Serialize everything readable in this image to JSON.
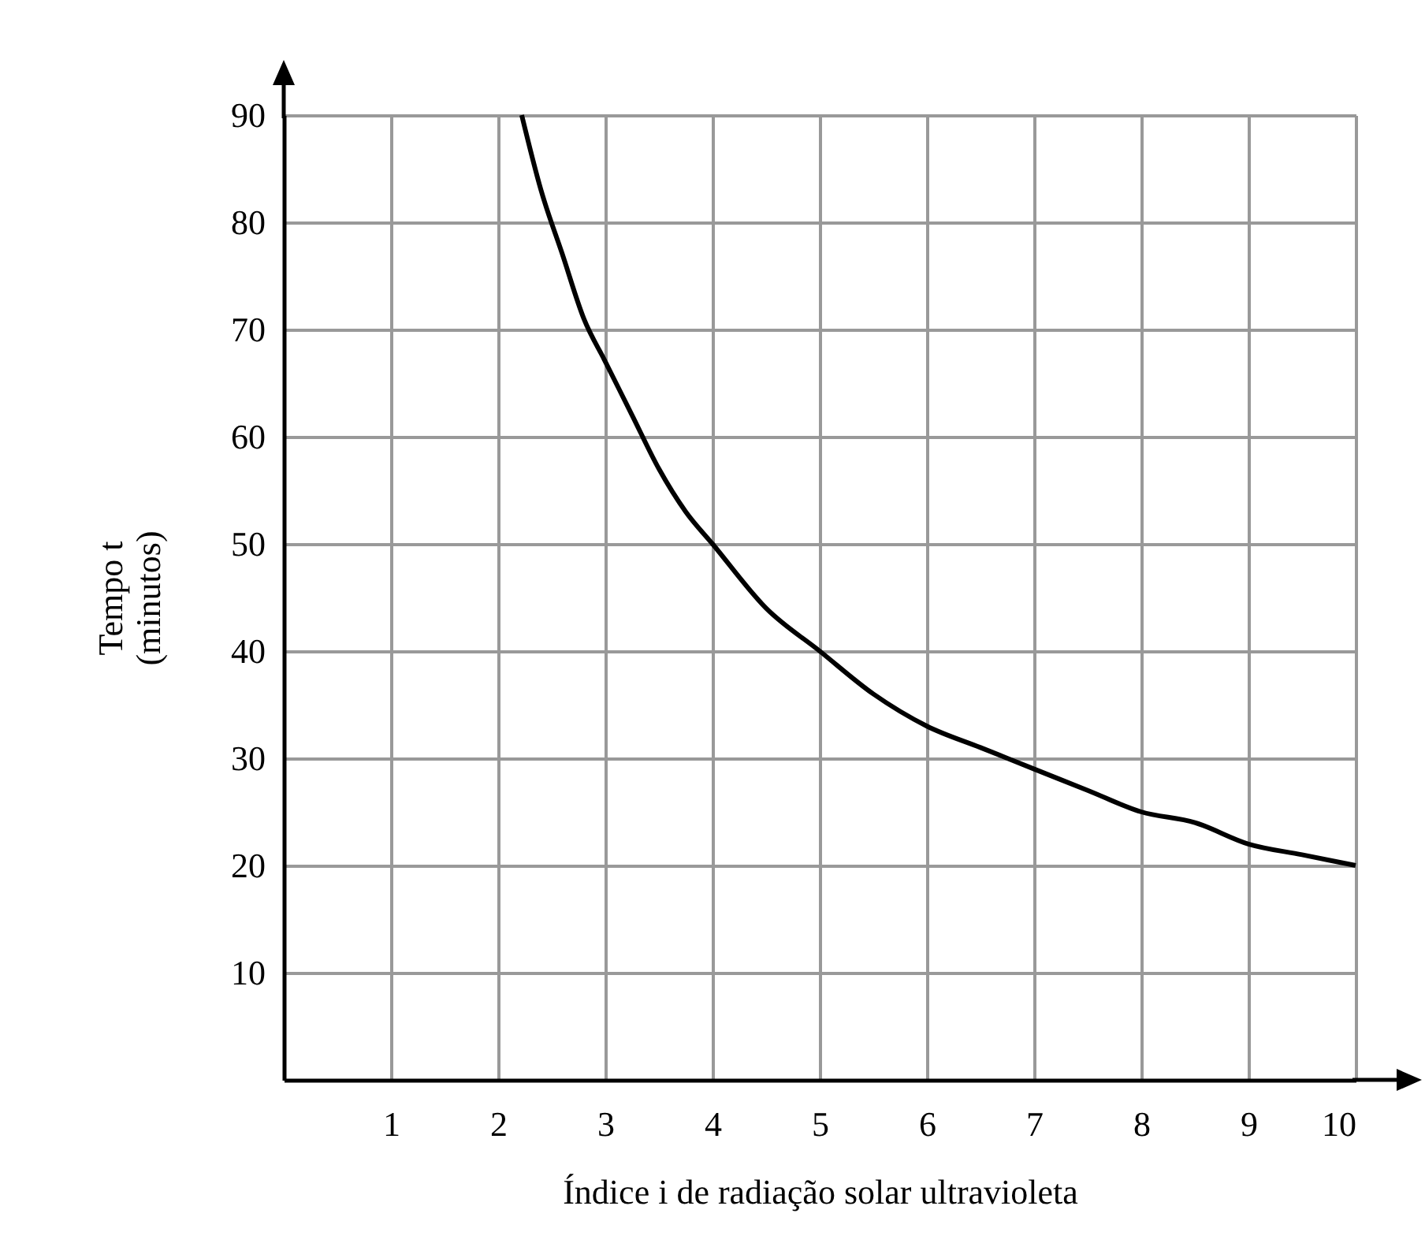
{
  "chart_data": {
    "type": "line",
    "xlabel": "Índice  i  de radiação solar ultravioleta",
    "ylabel": "Tempo  t\n(minutos)",
    "x": [
      2.22,
      2.4,
      2.6,
      2.8,
      3,
      3.25,
      3.5,
      3.75,
      4,
      4.5,
      5,
      5.5,
      6,
      6.5,
      7,
      7.5,
      8,
      8.5,
      9,
      9.5,
      10
    ],
    "series": [
      {
        "color": "#000000",
        "values": [
          90,
          83,
          77,
          71,
          67,
          62,
          57,
          53,
          50,
          44,
          40,
          36,
          33,
          31,
          29,
          27,
          25,
          24,
          22,
          21,
          20
        ]
      }
    ],
    "xlim": [
      0,
      10
    ],
    "ylim": [
      0,
      90
    ],
    "xticks": [
      1,
      2,
      3,
      4,
      5,
      6,
      7,
      8,
      9,
      10
    ],
    "yticks": [
      10,
      20,
      30,
      40,
      50,
      60,
      70,
      80,
      90
    ],
    "grid": true,
    "marker": "none",
    "line_style": "solid"
  }
}
